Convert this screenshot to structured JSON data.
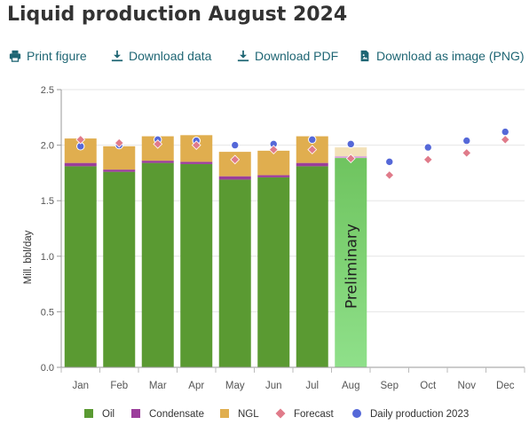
{
  "title": "Liquid production August 2024",
  "toolbar": {
    "print": "Print figure",
    "download_data": "Download data",
    "download_pdf": "Download PDF",
    "download_png": "Download as image (PNG)"
  },
  "colors": {
    "oil": "#5a9a32",
    "condensate": "#9b3d9b",
    "ngl": "#e0ae4f",
    "forecast": "#e07b8a",
    "daily_2023": "#5568d8",
    "preliminary": "#8fe08a",
    "link": "#1f6674"
  },
  "icons": [
    "print-icon",
    "download-icon",
    "download-icon",
    "image-file-icon"
  ],
  "chart_data": {
    "type": "bar",
    "stacked": true,
    "title": "",
    "ylabel": "Mill. bbl/day",
    "ylim": [
      0,
      2.5
    ],
    "yticks": [
      0.0,
      0.5,
      1.0,
      1.5,
      2.0,
      2.5
    ],
    "ytick_labels": [
      "0.0",
      "0.5",
      "1.0",
      "1.5",
      "2.0",
      "2.5"
    ],
    "grid": true,
    "legend_position": "bottom",
    "categories": [
      "Jan",
      "Feb",
      "Mar",
      "Apr",
      "May",
      "Jun",
      "Jul",
      "Aug",
      "Sep",
      "Oct",
      "Nov",
      "Dec"
    ],
    "series": [
      {
        "name": "Oil",
        "kind": "bar",
        "values": [
          1.81,
          1.76,
          1.84,
          1.83,
          1.69,
          1.71,
          1.81,
          null,
          null,
          null,
          null,
          null
        ]
      },
      {
        "name": "Condensate",
        "kind": "bar",
        "values": [
          0.03,
          0.02,
          0.02,
          0.02,
          0.03,
          0.02,
          0.03,
          null,
          null,
          null,
          null,
          null
        ]
      },
      {
        "name": "NGL",
        "kind": "bar",
        "values": [
          0.22,
          0.21,
          0.22,
          0.24,
          0.22,
          0.22,
          0.24,
          null,
          null,
          null,
          null,
          null
        ]
      },
      {
        "name": "Forecast",
        "kind": "marker",
        "marker": "diamond",
        "values": [
          2.05,
          2.02,
          2.01,
          2.0,
          1.87,
          1.96,
          1.96,
          1.88,
          1.73,
          1.87,
          1.93,
          2.05
        ]
      },
      {
        "name": "Daily production 2023",
        "kind": "marker",
        "marker": "circle",
        "values": [
          1.99,
          2.0,
          2.05,
          2.04,
          2.0,
          2.01,
          2.05,
          2.01,
          1.85,
          1.98,
          2.04,
          2.12
        ]
      }
    ],
    "preliminary": {
      "category": "Aug",
      "total": 1.98,
      "label": "Preliminary"
    }
  }
}
